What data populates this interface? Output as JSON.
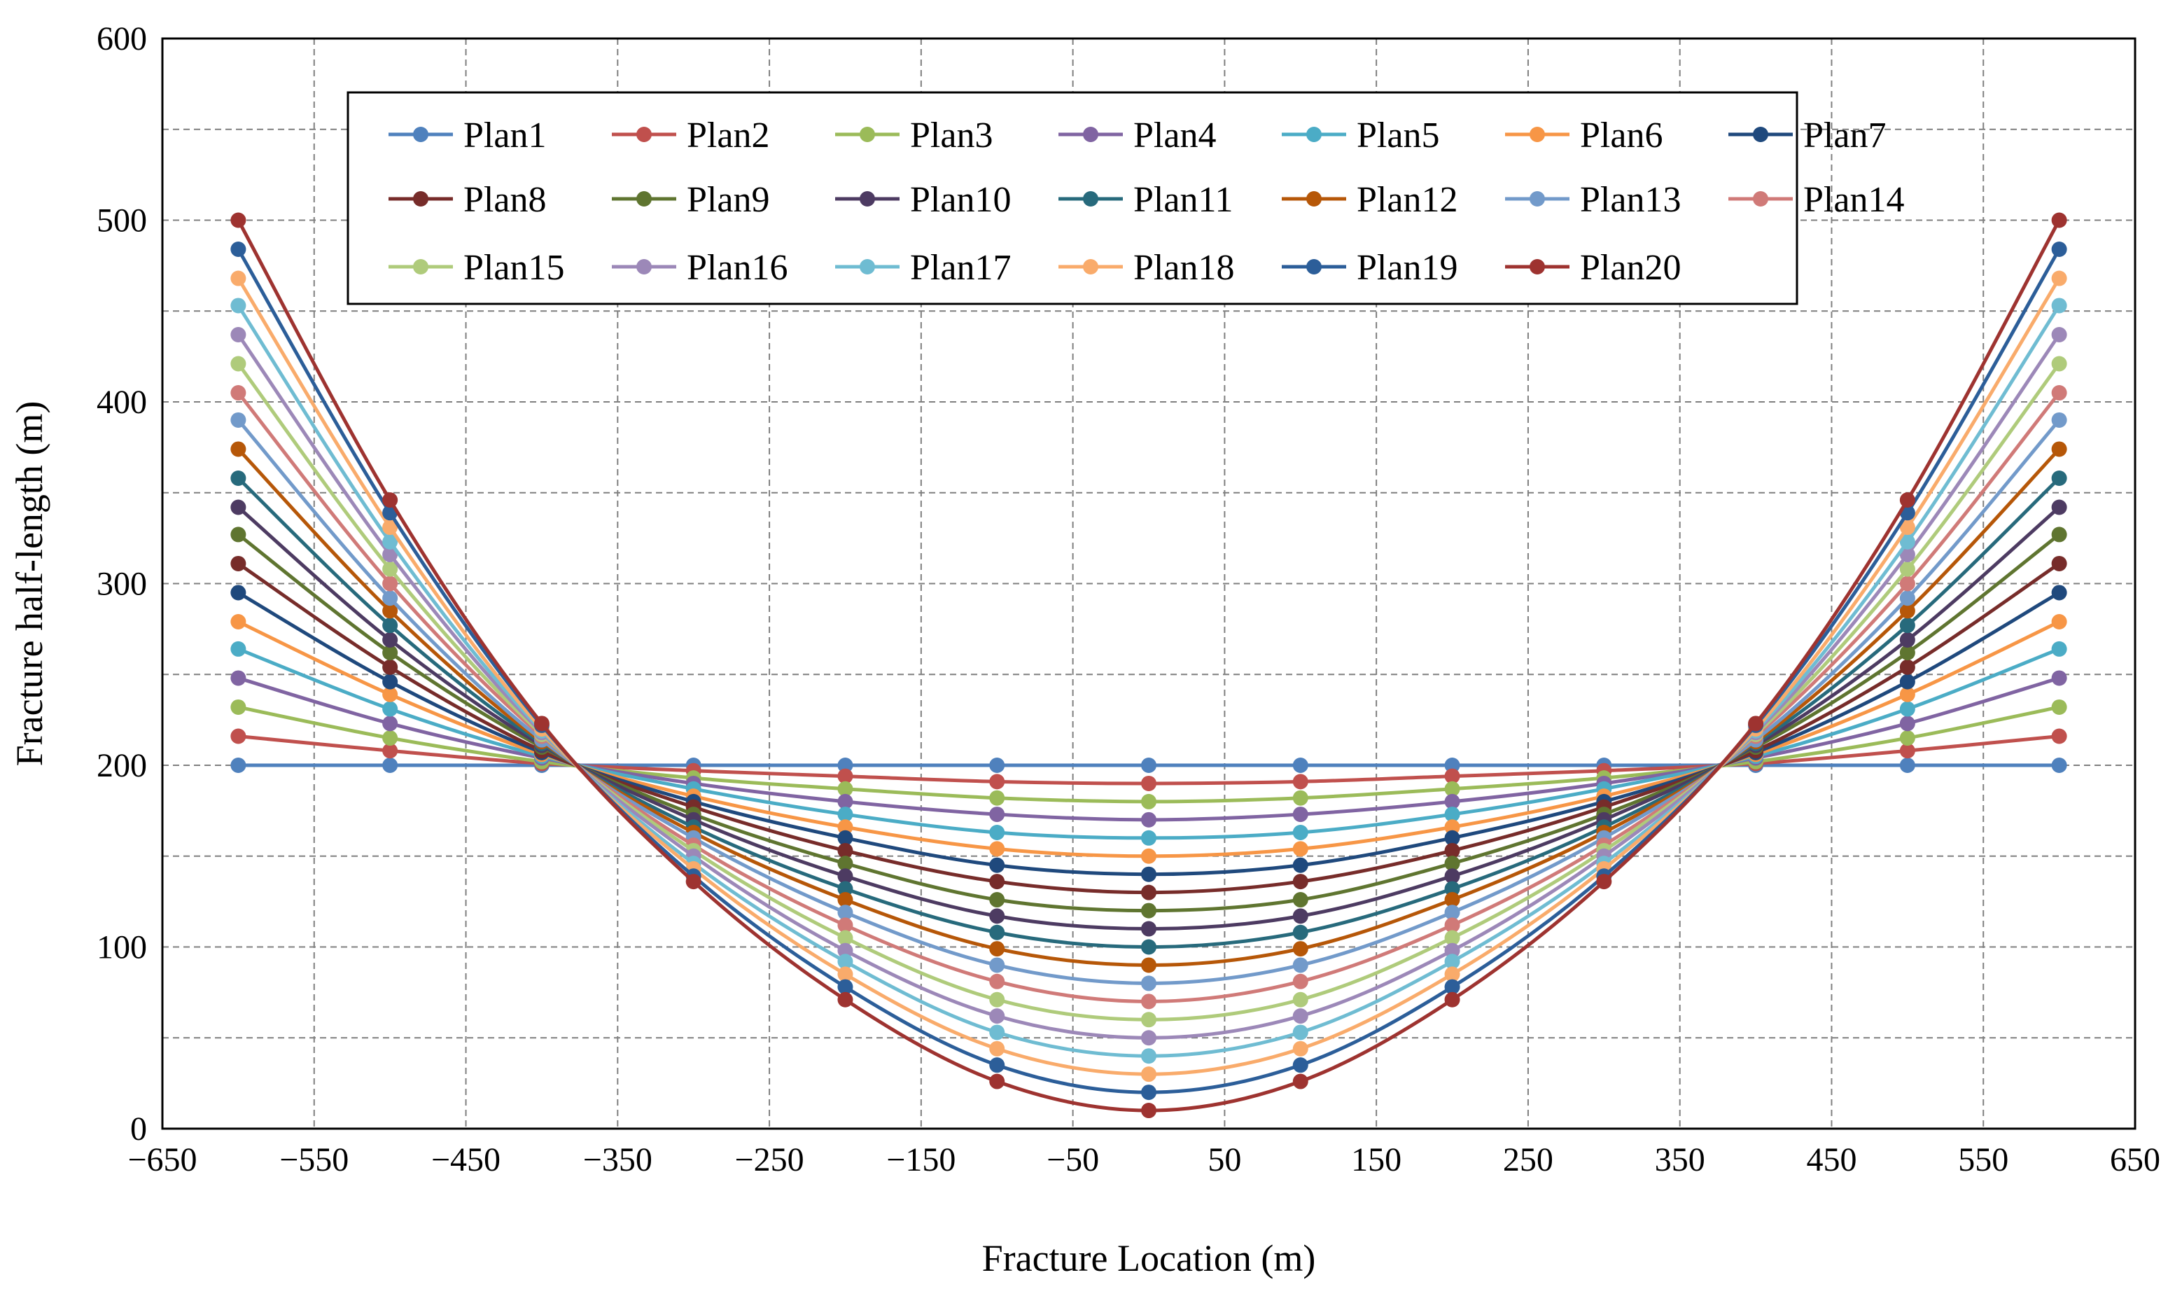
{
  "chart_data": {
    "type": "line",
    "title": "",
    "xlabel": "Fracture Location (m)",
    "ylabel": "Fracture half-length (m)",
    "xlim": [
      -650,
      650
    ],
    "ylim": [
      0,
      600
    ],
    "x_ticks": [
      -650,
      -550,
      -450,
      -350,
      -250,
      -150,
      -50,
      50,
      150,
      250,
      350,
      450,
      550,
      650
    ],
    "x_tick_labels": [
      "−650",
      "−550",
      "−450",
      "−350",
      "−250",
      "−150",
      "−50",
      "50",
      "150",
      "250",
      "350",
      "450",
      "550",
      "650"
    ],
    "y_ticks": [
      0,
      100,
      200,
      300,
      400,
      500,
      600
    ],
    "y_tick_labels": [
      "0",
      "100",
      "200",
      "300",
      "400",
      "500",
      "600"
    ],
    "grid": "dashed",
    "legend_position": "top-center",
    "x": [
      -600,
      -500,
      -400,
      -300,
      -200,
      -100,
      0,
      100,
      200,
      300,
      400,
      500,
      600
    ],
    "series": [
      {
        "name": "Plan1",
        "color": "#4F81BD",
        "values": [
          200,
          200,
          200,
          200,
          200,
          200,
          200,
          200,
          200,
          200,
          200,
          200,
          200
        ]
      },
      {
        "name": "Plan2",
        "color": "#C0504D",
        "values": [
          216,
          208,
          201,
          197,
          194,
          191,
          190,
          191,
          194,
          197,
          201,
          208,
          216
        ]
      },
      {
        "name": "Plan3",
        "color": "#9BBB59",
        "values": [
          232,
          215,
          202,
          193,
          187,
          182,
          180,
          182,
          187,
          193,
          202,
          215,
          232
        ]
      },
      {
        "name": "Plan4",
        "color": "#8064A2",
        "values": [
          248,
          223,
          204,
          190,
          180,
          173,
          170,
          173,
          180,
          190,
          204,
          223,
          248
        ]
      },
      {
        "name": "Plan5",
        "color": "#4BACC6",
        "values": [
          264,
          231,
          205,
          187,
          173,
          163,
          160,
          163,
          173,
          187,
          205,
          231,
          264
        ]
      },
      {
        "name": "Plan6",
        "color": "#F79646",
        "values": [
          279,
          239,
          206,
          183,
          166,
          154,
          150,
          154,
          166,
          183,
          206,
          239,
          279
        ]
      },
      {
        "name": "Plan7",
        "color": "#1F497D",
        "values": [
          295,
          246,
          207,
          180,
          160,
          145,
          140,
          145,
          160,
          180,
          207,
          246,
          295
        ]
      },
      {
        "name": "Plan8",
        "color": "#772C2A",
        "values": [
          311,
          254,
          208,
          177,
          153,
          136,
          130,
          136,
          153,
          177,
          208,
          254,
          311
        ]
      },
      {
        "name": "Plan9",
        "color": "#5F7530",
        "values": [
          327,
          262,
          210,
          173,
          146,
          126,
          120,
          126,
          146,
          173,
          210,
          262,
          327
        ]
      },
      {
        "name": "Plan10",
        "color": "#4D3B62",
        "values": [
          342,
          269,
          211,
          170,
          139,
          117,
          110,
          117,
          139,
          170,
          211,
          269,
          342
        ]
      },
      {
        "name": "Plan11",
        "color": "#276A7C",
        "values": [
          358,
          277,
          212,
          166,
          132,
          108,
          100,
          108,
          132,
          166,
          212,
          277,
          358
        ]
      },
      {
        "name": "Plan12",
        "color": "#B65708",
        "values": [
          374,
          285,
          213,
          163,
          126,
          99,
          90,
          99,
          126,
          163,
          213,
          285,
          374
        ]
      },
      {
        "name": "Plan13",
        "color": "#729ACA",
        "values": [
          390,
          292,
          214,
          160,
          119,
          90,
          80,
          90,
          119,
          160,
          214,
          292,
          390
        ]
      },
      {
        "name": "Plan14",
        "color": "#D07A78",
        "values": [
          405,
          300,
          216,
          156,
          112,
          81,
          70,
          81,
          112,
          156,
          216,
          300,
          405
        ]
      },
      {
        "name": "Plan15",
        "color": "#AFCB7B",
        "values": [
          421,
          308,
          217,
          153,
          105,
          71,
          60,
          71,
          105,
          153,
          217,
          308,
          421
        ]
      },
      {
        "name": "Plan16",
        "color": "#9C88B8",
        "values": [
          437,
          316,
          218,
          150,
          98,
          62,
          50,
          62,
          98,
          150,
          218,
          316,
          437
        ]
      },
      {
        "name": "Plan17",
        "color": "#6FBCD2",
        "values": [
          453,
          323,
          219,
          146,
          92,
          53,
          40,
          53,
          92,
          146,
          219,
          323,
          453
        ]
      },
      {
        "name": "Plan18",
        "color": "#F9AB6B",
        "values": [
          468,
          331,
          220,
          143,
          85,
          44,
          30,
          44,
          85,
          143,
          220,
          331,
          468
        ]
      },
      {
        "name": "Plan19",
        "color": "#2C5E99",
        "values": [
          484,
          339,
          222,
          139,
          78,
          35,
          20,
          35,
          78,
          139,
          222,
          339,
          484
        ]
      },
      {
        "name": "Plan20",
        "color": "#9E3330",
        "values": [
          500,
          346,
          223,
          136,
          71,
          26,
          10,
          26,
          71,
          136,
          223,
          346,
          500
        ]
      }
    ]
  }
}
